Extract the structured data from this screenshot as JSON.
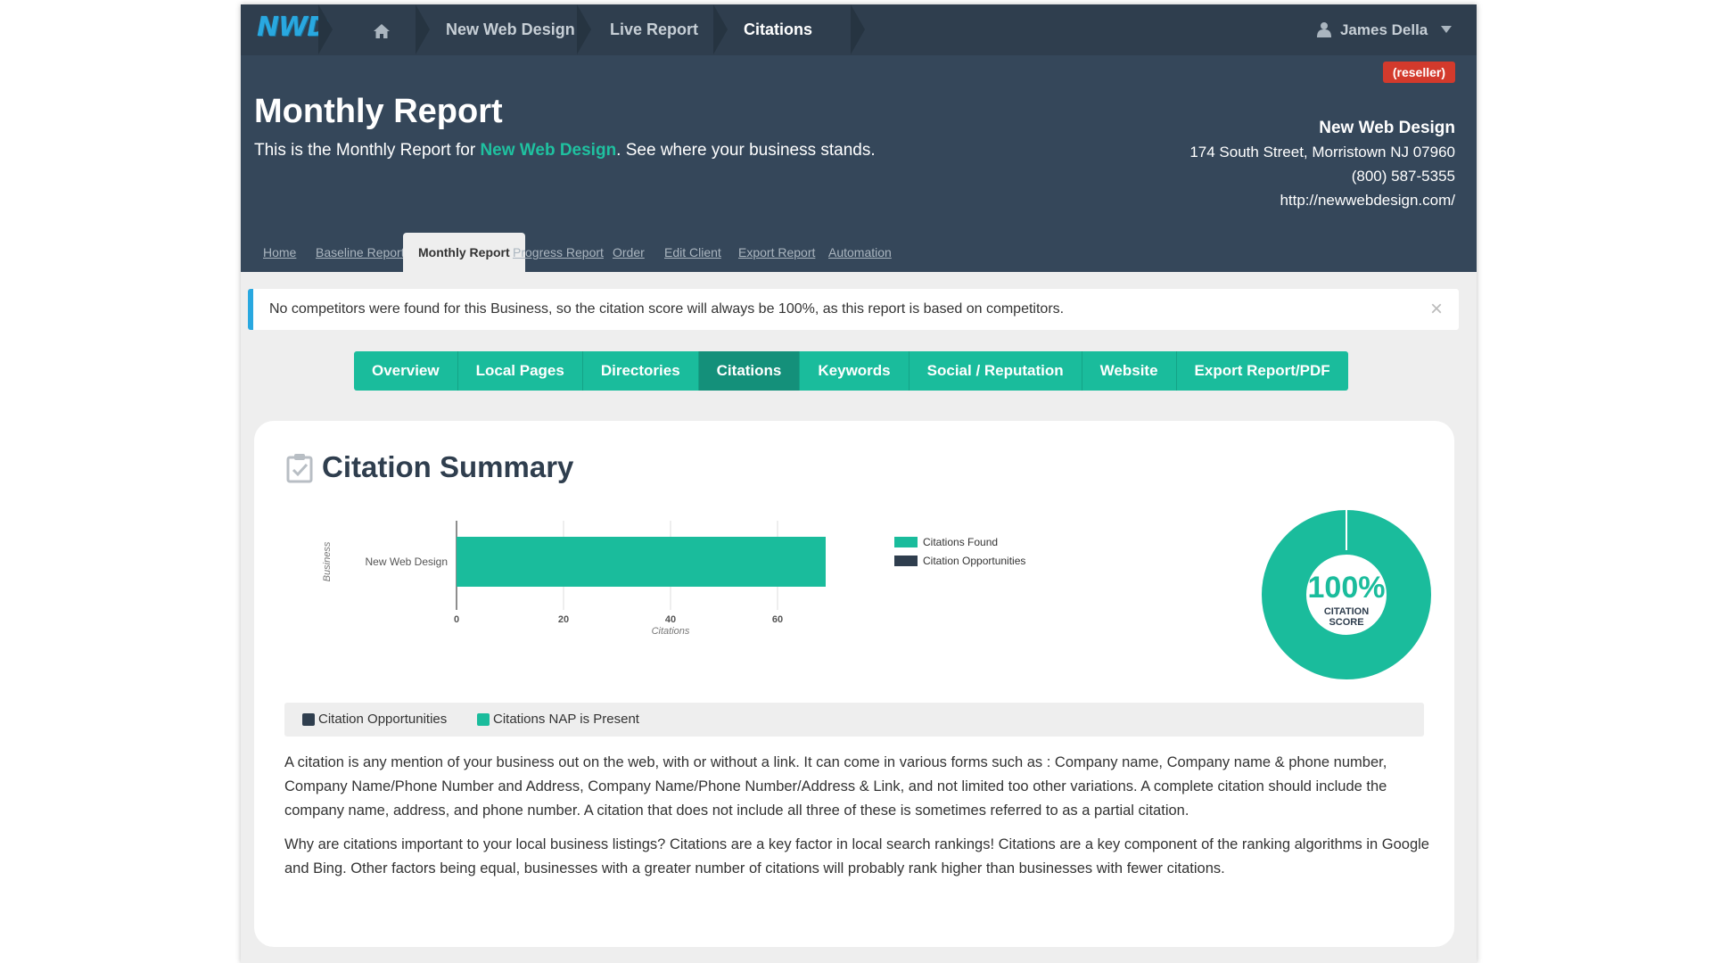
{
  "topnav": {
    "logo": "NWD",
    "home_icon": "home-icon",
    "breadcrumbs": [
      "New Web Design",
      "Live Report",
      "Citations"
    ],
    "user_name": "James Della",
    "user_icon": "user-icon",
    "dropdown_icon": "caret-down-icon"
  },
  "header": {
    "badge": "(reseller)",
    "title": "Monthly Report",
    "subtitle_pre": "This is the Monthly Report for ",
    "subtitle_link": "New Web Design",
    "subtitle_post": ". See where your business stands.",
    "business": {
      "name": "New Web Design",
      "address": "174 South Street, Morristown NJ 07960",
      "phone": "(800) 587-5355",
      "url": "http://newwebdesign.com/"
    },
    "tabs": [
      "Home",
      "Baseline Report",
      "Monthly Report",
      "Progress Report",
      "Order",
      "Edit Client",
      "Export Report",
      "Automation"
    ],
    "active_tab": "Monthly Report"
  },
  "alert": {
    "text": "No competitors were found for this Business, so the citation score will always be 100%, as this report is based on competitors.",
    "close": "×"
  },
  "report_tabs": [
    "Overview",
    "Local Pages",
    "Directories",
    "Citations",
    "Keywords",
    "Social / Reputation",
    "Website",
    "Export Report/PDF"
  ],
  "active_report_tab": "Citations",
  "card": {
    "title": "Citation Summary",
    "icon": "clipboard-check-icon",
    "donut_value": "100%",
    "donut_label_1": "CITATION",
    "donut_label_2": "SCORE",
    "donut_score": 1.0,
    "legend_bar": [
      "Citation Opportunities",
      "Citations NAP is Present"
    ],
    "paragraph_1": "A citation is any mention of your business out on the web, with or without a link. It can come in various forms such as : Company name, Company name & phone number, Company Name/Phone Number and Address, Company Name/Phone Number/Address & Link, and not limited too other variations. A complete citation should include the company name, address, and phone number. A citation that does not include all three of these is sometimes referred to as a partial citation.",
    "paragraph_2": "Why are citations important to your local business listings? Citations are a key factor in local search rankings! Citations are a key component of the ranking algorithms in Google and Bing. Other factors being equal, businesses with a greater number of citations will probably rank higher than businesses with fewer citations."
  },
  "colors": {
    "teal": "#1abc9c",
    "navy": "#2f3e4e",
    "header_bg": "#35475a",
    "reseller_red": "#d33a2c",
    "alert_blue": "#29a8e0"
  },
  "chart_data": {
    "type": "bar",
    "orientation": "horizontal",
    "categories": [
      "New Web Design"
    ],
    "series": [
      {
        "name": "Citations Found",
        "values": [
          69
        ],
        "color": "#1abc9c"
      },
      {
        "name": "Citation Opportunities",
        "values": [
          0
        ],
        "color": "#2f3e4e"
      }
    ],
    "xlabel": "Citations",
    "ylabel": "Business",
    "xlim": [
      0,
      80
    ],
    "xticks": [
      "0",
      "20",
      "40",
      "60",
      "80"
    ],
    "grid": true,
    "legend": "right"
  }
}
